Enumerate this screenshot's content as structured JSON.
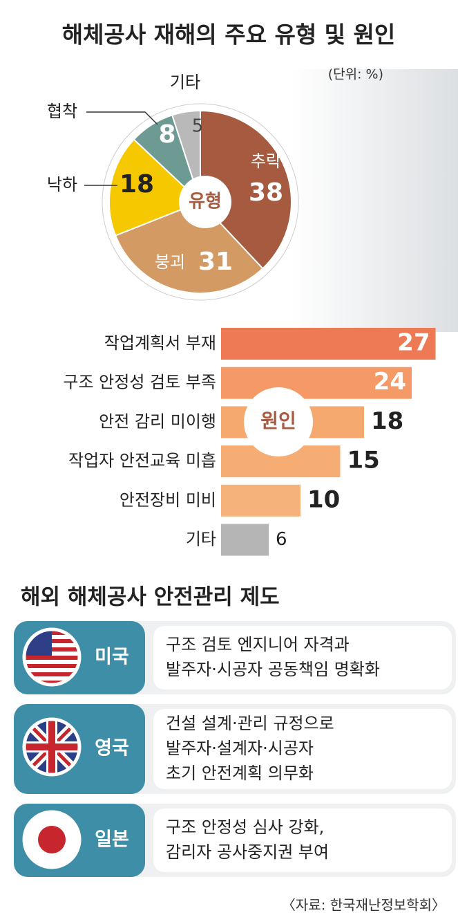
{
  "title": "해체공사 재해의 주요 유형 및 원인",
  "chart_data": [
    {
      "type": "pie",
      "unit_note": "(단위: %)",
      "center_label": "유형",
      "categories": [
        "추락",
        "붕괴",
        "낙하",
        "협착",
        "기타"
      ],
      "values": [
        38,
        31,
        18,
        8,
        5
      ],
      "colors": [
        "#a65b40",
        "#d39a64",
        "#f5c800",
        "#6e9a94",
        "#b9b9b9"
      ]
    },
    {
      "type": "bar",
      "center_label": "원인",
      "categories": [
        "작업계획서 부재",
        "구조 안정성 검토 부족",
        "안전 감리 미이행",
        "작업자 안전교육 미흡",
        "안전장비 미비",
        "기타"
      ],
      "values": [
        27,
        24,
        18,
        15,
        10,
        6
      ],
      "colors": [
        "#ee7a55",
        "#f59a66",
        "#f5a96f",
        "#f5ad74",
        "#f5b27a",
        "#b5b5b5"
      ]
    }
  ],
  "overseas": {
    "title": "해외 해체공사 안전관리 제도",
    "rows": [
      {
        "country": "미국",
        "lines": [
          "구조 검토 엔지니어 자격과",
          "발주자·시공자 공동책임 명확화"
        ]
      },
      {
        "country": "영국",
        "lines": [
          "건설 설계·관리 규정으로",
          "발주자·설계자·시공자",
          "초기 안전계획 의무화"
        ]
      },
      {
        "country": "일본",
        "lines": [
          "구조 안정성 심사 강화,",
          "감리자 공사중지권 부여"
        ]
      }
    ]
  },
  "source": "〈자료: 한국재난정보학회〉"
}
